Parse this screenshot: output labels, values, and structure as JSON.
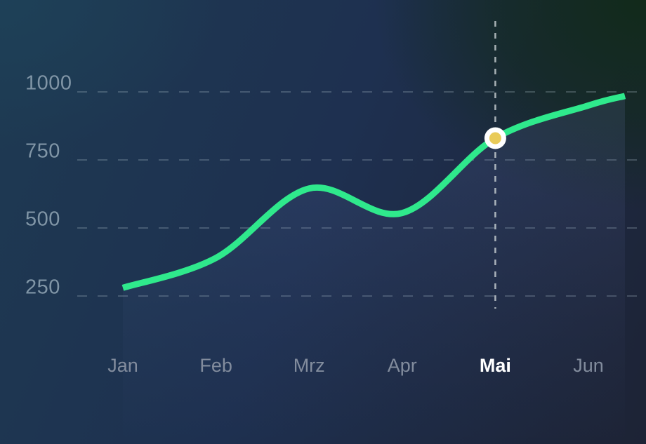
{
  "chart_data": {
    "type": "line",
    "title": "",
    "xlabel": "",
    "ylabel": "",
    "legend": "none",
    "grid": "horizontal-dashed",
    "categories": [
      "Jan",
      "Feb",
      "Mrz",
      "Apr",
      "Mai",
      "Jun"
    ],
    "values": [
      280,
      390,
      645,
      555,
      830,
      950
    ],
    "yticks": [
      250,
      500,
      750,
      1000
    ],
    "ylim": [
      250,
      1000
    ],
    "highlight": {
      "category": "Mai",
      "index": 4,
      "value": 830,
      "marker": "white-ring-yellow-dot",
      "crosshair": "vertical-dashed"
    },
    "line_extension": {
      "value": 985
    }
  },
  "colors": {
    "line": "#2fe98c",
    "marker_ring": "#ffffff",
    "marker_fill": "#e9cb59",
    "gridline": "#aebfca",
    "crosshair": "#ccd3d6",
    "y_label": "#8095a6",
    "x_label": "#828c9d",
    "x_label_active": "#ffffff",
    "bg_top_left": "#1e4057",
    "bg_top_right": "#122a1a",
    "bg_bottom_left": "#1e3050",
    "bg_bottom_right": "#1d2335",
    "area_tint": "#7d8cd2"
  }
}
